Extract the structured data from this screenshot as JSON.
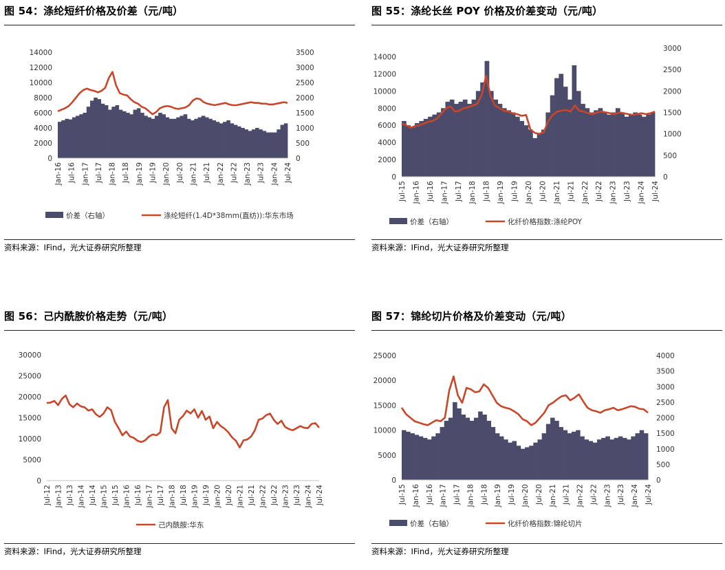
{
  "colors": {
    "bar": "#4b4b6b",
    "line": "#c8462a",
    "axis": "#bfbfbf"
  },
  "panels": [
    {
      "title": "图 54：涤纶短纤价格及价差（元/吨）",
      "source": "资料来源：IFind，光大证券研究所整理",
      "chart_data": {
        "type": "bar+line",
        "x_ticks": [
          "Jan-16",
          "Jul-16",
          "Jan-17",
          "Jul-17",
          "Jan-18",
          "Jul-18",
          "Jan-19",
          "Jul-19",
          "Jan-20",
          "Jul-20",
          "Jan-21",
          "Jul-21",
          "Jan-22",
          "Jul-22",
          "Jan-23",
          "Jul-23",
          "Jan-24",
          "Jul-24"
        ],
        "left_axis": {
          "ticks": [
            "0",
            "2000",
            "4000",
            "6000",
            "8000",
            "10000",
            "12000",
            "14000"
          ],
          "lim": [
            0,
            14000
          ]
        },
        "right_axis": {
          "ticks": [
            "0",
            "500",
            "1000",
            "1500",
            "2000",
            "2500",
            "3000",
            "3500"
          ],
          "lim": [
            0,
            3500
          ]
        },
        "bar_series": {
          "name": "价差（右轴）",
          "axis": "right",
          "values": [
            1200,
            1250,
            1300,
            1280,
            1350,
            1400,
            1450,
            1500,
            1700,
            1900,
            2000,
            1950,
            1800,
            1750,
            1600,
            1700,
            1750,
            1600,
            1550,
            1500,
            1450,
            1600,
            1650,
            1500,
            1400,
            1350,
            1300,
            1400,
            1500,
            1450,
            1350,
            1300,
            1300,
            1350,
            1400,
            1450,
            1300,
            1250,
            1300,
            1350,
            1400,
            1350,
            1300,
            1250,
            1200,
            1150,
            1200,
            1250,
            1150,
            1100,
            1050,
            1000,
            950,
            900,
            950,
            1000,
            950,
            900,
            850,
            850,
            850,
            950,
            1100,
            1150
          ]
        },
        "line_series": {
          "name": "涤纶短纤(1.4D*38mm(直纺)):华东市场",
          "axis": "left",
          "values": [
            6200,
            6400,
            6600,
            6900,
            7400,
            8000,
            8600,
            9000,
            9200,
            9000,
            8900,
            8700,
            8900,
            9300,
            10600,
            11400,
            9600,
            8600,
            8400,
            8300,
            7800,
            7400,
            7200,
            6800,
            6600,
            6200,
            5800,
            6100,
            6600,
            6800,
            6900,
            6800,
            6600,
            6500,
            6600,
            6700,
            7000,
            7600,
            7900,
            7800,
            7400,
            7200,
            7100,
            7000,
            7100,
            7200,
            7300,
            7100,
            7000,
            7000,
            7100,
            7200,
            7300,
            7400,
            7300,
            7300,
            7200,
            7200,
            7100,
            7100,
            7200,
            7300,
            7400,
            7300
          ]
        },
        "legend": [
          "价差（右轴）",
          "涤纶短纤(1.4D*38mm(直纺)):华东市场"
        ]
      }
    },
    {
      "title": "图 55：涤纶长丝 POY 价格及价差变动（元/吨）",
      "source": "资料来源：IFind，光大证券研究所整理",
      "chart_data": {
        "type": "bar+line",
        "x_ticks": [
          "Jul-15",
          "Jan-16",
          "Jul-16",
          "Jan-17",
          "Jul-17",
          "Jan-18",
          "Jul-18",
          "Jan-19",
          "Jul-19",
          "Jan-20",
          "Jul-20",
          "Jan-21",
          "Jul-21",
          "Jan-22",
          "Jul-22",
          "Jan-23",
          "Jul-23",
          "Jan-24",
          "Jul-24"
        ],
        "left_axis": {
          "ticks": [
            "0",
            "2000",
            "4000",
            "6000",
            "8000",
            "10000",
            "12000",
            "14000"
          ],
          "lim": [
            0,
            15000
          ]
        },
        "right_axis": {
          "ticks": [
            "0",
            "500",
            "1000",
            "1500",
            "2000",
            "2500",
            "3000"
          ],
          "lim": [
            0,
            3000
          ]
        },
        "bar_series": {
          "name": "价差（右轴）",
          "axis": "right",
          "values": [
            1300,
            1200,
            1150,
            1250,
            1300,
            1350,
            1400,
            1450,
            1500,
            1600,
            1750,
            1800,
            1700,
            1750,
            1800,
            1700,
            1800,
            2000,
            2200,
            2700,
            2000,
            1800,
            1700,
            1600,
            1550,
            1500,
            1400,
            1300,
            1200,
            1100,
            900,
            1000,
            1100,
            1500,
            1900,
            2300,
            2400,
            2100,
            1800,
            2600,
            2000,
            1700,
            1600,
            1500,
            1550,
            1600,
            1500,
            1450,
            1500,
            1600,
            1500,
            1400,
            1450,
            1500,
            1450,
            1400,
            1450,
            1500
          ]
        },
        "line_series": {
          "name": "化纤价格指数:涤纶POY",
          "axis": "left",
          "values": [
            6200,
            6000,
            5700,
            5900,
            6000,
            6200,
            6400,
            6500,
            6800,
            7400,
            8000,
            8200,
            7600,
            7700,
            8000,
            8100,
            8300,
            8500,
            9500,
            11800,
            9400,
            8300,
            8000,
            7700,
            7600,
            7400,
            7300,
            7100,
            7200,
            5500,
            5100,
            5000,
            5200,
            6500,
            7200,
            7600,
            7700,
            7800,
            7600,
            8300,
            7700,
            7600,
            7400,
            7300,
            7500,
            7600,
            7500,
            7400,
            7300,
            7500,
            7400,
            7300,
            7200,
            7300,
            7400,
            7300,
            7400,
            7600
          ]
        },
        "legend": [
          "价差（右轴）",
          "化纤价格指数:涤纶POY"
        ]
      }
    },
    {
      "title": "图 56：己内酰胺价格走势（元/吨）",
      "source": "资料来源：IFind，光大证券研究所整理",
      "chart_data": {
        "type": "line",
        "x_ticks": [
          "Jul-12",
          "Jan-13",
          "Jul-13",
          "Jan-14",
          "Jul-14",
          "Jan-15",
          "Jul-15",
          "Jan-16",
          "Jul-16",
          "Jan-17",
          "Jul-17",
          "Jan-18",
          "Jul-18",
          "Jan-19",
          "Jul-19",
          "Jan-20",
          "Jul-20",
          "Jan-21",
          "Jul-21",
          "Jan-22",
          "Jul-22",
          "Jan-23",
          "Jul-23",
          "Jan-24",
          "Jul-24"
        ],
        "left_axis": {
          "ticks": [
            "0",
            "5000",
            "10000",
            "15000",
            "20000",
            "25000",
            "30000"
          ],
          "lim": [
            0,
            30000
          ]
        },
        "line_series": {
          "name": "己内酰胺:华东",
          "values": [
            18500,
            18600,
            19000,
            18000,
            19500,
            20300,
            18200,
            17500,
            18400,
            17700,
            17500,
            16700,
            17000,
            15800,
            15200,
            16000,
            17500,
            16800,
            14000,
            12500,
            10800,
            11700,
            10500,
            10200,
            9500,
            9200,
            9600,
            10500,
            11000,
            10800,
            11500,
            17500,
            19200,
            12500,
            11300,
            14500,
            15400,
            16700,
            16000,
            17000,
            15000,
            16600,
            14500,
            15300,
            12500,
            14000,
            13000,
            12400,
            11500,
            10300,
            9500,
            7900,
            9600,
            9800,
            10500,
            12000,
            14500,
            14800,
            15600,
            16000,
            14500,
            13500,
            14300,
            12800,
            12300,
            12000,
            12500,
            13000,
            12600,
            12500,
            13500,
            13700,
            12600
          ]
        },
        "legend": [
          "己内酰胺:华东"
        ]
      }
    },
    {
      "title": "图 57：锦纶切片价格及价差变动（元/吨）",
      "source": "资料来源：IFind，光大证券研究所整理",
      "chart_data": {
        "type": "bar+line",
        "x_ticks": [
          "Jul-15",
          "Jan-16",
          "Jul-16",
          "Jan-17",
          "Jul-17",
          "Jan-18",
          "Jul-18",
          "Jan-19",
          "Jul-19",
          "Jan-20",
          "Jul-20",
          "Jan-21",
          "Jul-21",
          "Jan-22",
          "Jul-22",
          "Jan-23",
          "Jul-23",
          "Jan-24",
          "Jul-24"
        ],
        "left_axis": {
          "ticks": [
            "0",
            "5000",
            "10000",
            "15000",
            "20000",
            "25000"
          ],
          "lim": [
            0,
            25000
          ]
        },
        "right_axis": {
          "ticks": [
            "0",
            "500",
            "1000",
            "1500",
            "2000",
            "2500",
            "3000",
            "3500",
            "4000"
          ],
          "lim": [
            0,
            4000
          ]
        },
        "bar_series": {
          "name": "价差（右轴）",
          "axis": "right",
          "values": [
            1600,
            1550,
            1500,
            1450,
            1400,
            1350,
            1300,
            1400,
            1500,
            1700,
            1900,
            2000,
            2500,
            2300,
            2100,
            2000,
            1900,
            2000,
            2200,
            2100,
            1900,
            1700,
            1500,
            1400,
            1300,
            1200,
            1250,
            1100,
            1000,
            1050,
            1100,
            1200,
            1300,
            1500,
            1800,
            2000,
            1900,
            1700,
            1600,
            1500,
            1550,
            1600,
            1400,
            1300,
            1250,
            1200,
            1300,
            1350,
            1400,
            1300,
            1350,
            1400,
            1350,
            1300,
            1400,
            1500,
            1600,
            1500
          ]
        },
        "line_series": {
          "name": "化纤价格指数:锦纶切片",
          "axis": "left",
          "values": [
            14500,
            13200,
            12500,
            11800,
            11500,
            11200,
            11000,
            11500,
            12000,
            11800,
            12500,
            18000,
            20800,
            17000,
            15500,
            18500,
            18200,
            17600,
            17800,
            19200,
            18500,
            17000,
            15500,
            14800,
            14500,
            14300,
            13800,
            13200,
            12200,
            11800,
            11000,
            11500,
            12500,
            13500,
            15000,
            15500,
            16200,
            16800,
            17000,
            16000,
            16500,
            17200,
            15800,
            14500,
            14000,
            13800,
            13500,
            14000,
            14200,
            14500,
            14000,
            14200,
            14500,
            14800,
            14700,
            14300,
            14200,
            13500
          ]
        },
        "legend": [
          "价差（右轴）",
          "化纤价格指数:锦纶切片"
        ]
      }
    }
  ]
}
